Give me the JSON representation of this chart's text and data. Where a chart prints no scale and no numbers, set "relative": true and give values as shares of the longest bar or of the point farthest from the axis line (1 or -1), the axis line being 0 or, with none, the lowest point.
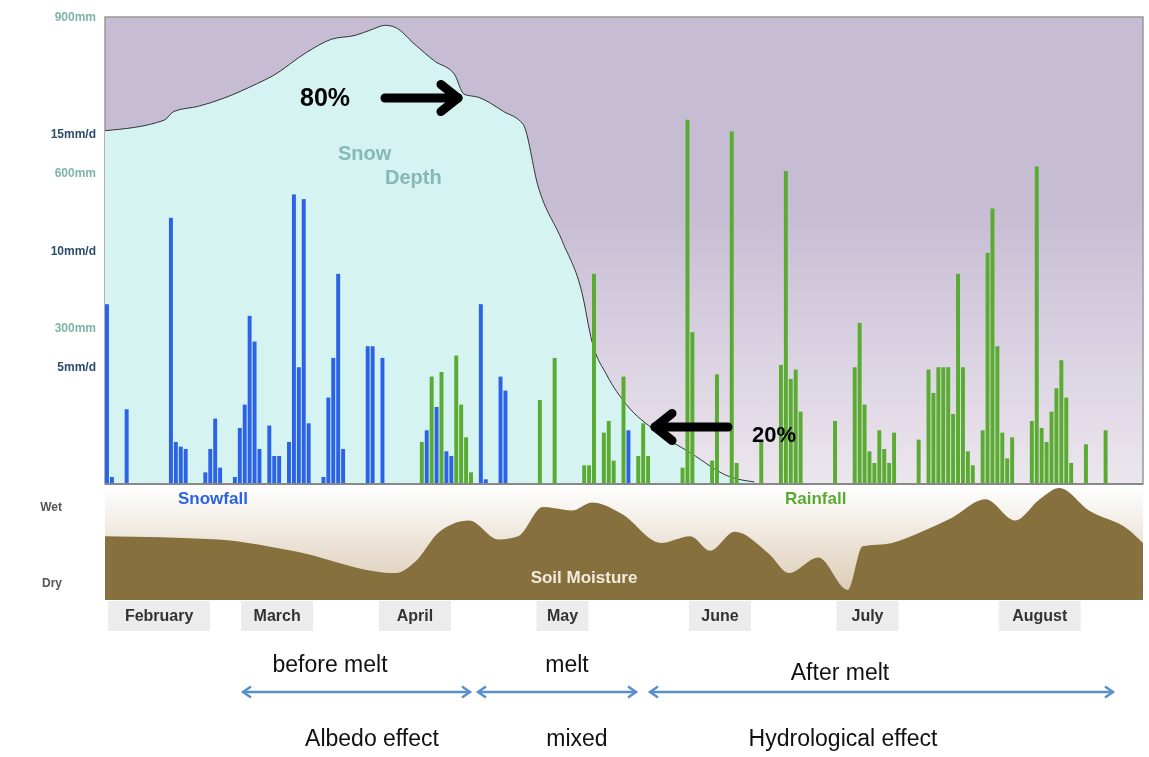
{
  "chart_data": [
    {
      "type": "bar",
      "xlim": [
        "--02-01",
        "--08-31"
      ],
      "ylim": [
        0,
        20
      ],
      "yticks": [
        {
          "value": 5,
          "label": "5mm/d"
        },
        {
          "value": 10,
          "label": "10mm/d"
        },
        {
          "value": 15,
          "label": "15mm/d"
        }
      ],
      "y2lim": [
        0,
        900
      ],
      "y2ticks": [
        {
          "value": 300,
          "label": "300mm"
        },
        {
          "value": 600,
          "label": "600mm"
        },
        {
          "value": 900,
          "label": "900mm"
        }
      ],
      "tick_labels": "y",
      "series": [
        {
          "name": "Snow Depth",
          "type": "area",
          "axis": "y2",
          "color": "#d4f3f1",
          "x": [
            "--02-01",
            "--02-13",
            "--02-15",
            "--02-20",
            "--02-25",
            "--03-04",
            "--03-07",
            "--03-14",
            "--03-19",
            "--03-24",
            "--03-27",
            "--03-30",
            "--04-01",
            "--04-05",
            "--04-09",
            "--04-13",
            "--04-15",
            "--04-18",
            "--04-23",
            "--04-27",
            "--04-30",
            "--05-05",
            "--05-09",
            "--05-11",
            "--05-14",
            "--05-18",
            "--05-24",
            "--05-31",
            "--06-08",
            "--06-13"
          ],
          "values": [
            681,
            701,
            718,
            728,
            743,
            772,
            786,
            832,
            857,
            865,
            875,
            884,
            880,
            847,
            815,
            790,
            751,
            745,
            718,
            693,
            575,
            467,
            367,
            274,
            210,
            153,
            102,
            60,
            14,
            4
          ]
        },
        {
          "name": "Snowfall",
          "color": "#2b62e6",
          "x": [
            "--02-01",
            "--02-02",
            "--02-05",
            "--02-14",
            "--02-15",
            "--02-16",
            "--02-17",
            "--02-21",
            "--02-22",
            "--02-23",
            "--02-24",
            "--02-27",
            "--02-28",
            "--03-01",
            "--03-02",
            "--03-03",
            "--03-04",
            "--03-06",
            "--03-07",
            "--03-08",
            "--03-10",
            "--03-11",
            "--03-12",
            "--03-13",
            "--03-14",
            "--03-17",
            "--03-18",
            "--03-19",
            "--03-20",
            "--03-21",
            "--03-26",
            "--03-27",
            "--03-29",
            "--04-07",
            "--04-09",
            "--04-11",
            "--04-12",
            "--04-18",
            "--04-19",
            "--04-22",
            "--04-23",
            "--05-18"
          ],
          "values": [
            7.7,
            0.3,
            3.2,
            11.4,
            1.8,
            1.6,
            1.5,
            0.5,
            1.5,
            2.8,
            0.7,
            0.3,
            2.4,
            3.4,
            7.2,
            6.1,
            1.5,
            2.5,
            1.2,
            1.2,
            1.8,
            12.4,
            5.0,
            12.2,
            2.6,
            0.3,
            3.7,
            5.4,
            9.0,
            1.5,
            5.9,
            5.9,
            5.4,
            2.3,
            3.3,
            1.4,
            1.2,
            7.7,
            0.2,
            4.6,
            4.0,
            2.3
          ]
        },
        {
          "name": "Rainfall",
          "color": "#5aab32",
          "x": [
            "--04-06",
            "--04-08",
            "--04-10",
            "--04-13",
            "--04-14",
            "--04-15",
            "--04-16",
            "--04-30",
            "--05-03",
            "--05-09",
            "--05-10",
            "--05-11",
            "--05-13",
            "--05-14",
            "--05-15",
            "--05-17",
            "--05-20",
            "--05-21",
            "--05-22",
            "--05-29",
            "--05-30",
            "--05-31",
            "--06-04",
            "--06-05",
            "--06-08",
            "--06-09",
            "--06-14",
            "--06-18",
            "--06-19",
            "--06-20",
            "--06-21",
            "--06-22",
            "--06-29",
            "--07-03",
            "--07-04",
            "--07-05",
            "--07-06",
            "--07-07",
            "--07-08",
            "--07-09",
            "--07-10",
            "--07-11",
            "--07-16",
            "--07-18",
            "--07-19",
            "--07-20",
            "--07-21",
            "--07-22",
            "--07-23",
            "--07-24",
            "--07-25",
            "--07-26",
            "--07-27",
            "--07-29",
            "--07-30",
            "--07-31",
            "--08-01",
            "--08-02",
            "--08-03",
            "--08-04",
            "--08-08",
            "--08-09",
            "--08-10",
            "--08-11",
            "--08-12",
            "--08-13",
            "--08-14",
            "--08-15",
            "--08-16",
            "--08-19",
            "--08-23"
          ],
          "values": [
            1.8,
            4.6,
            4.8,
            5.5,
            3.4,
            2.0,
            0.5,
            3.6,
            5.4,
            0.8,
            0.8,
            9.0,
            2.2,
            2.7,
            1.0,
            4.6,
            1.2,
            2.6,
            1.2,
            0.7,
            15.6,
            6.5,
            1.0,
            4.7,
            15.1,
            0.9,
            1.8,
            5.1,
            13.4,
            4.5,
            4.9,
            3.1,
            2.7,
            5.0,
            6.9,
            3.4,
            1.4,
            0.9,
            2.3,
            1.5,
            0.9,
            2.2,
            1.9,
            4.9,
            3.9,
            5.0,
            5.0,
            5.0,
            3.0,
            9.0,
            5.0,
            1.4,
            0.8,
            2.3,
            9.9,
            11.8,
            5.9,
            2.2,
            1.1,
            2.0,
            2.7,
            13.6,
            2.4,
            1.8,
            3.1,
            4.1,
            5.3,
            3.7,
            0.9,
            1.7,
            2.3
          ]
        }
      ],
      "annotations": [
        "80%",
        "20%"
      ]
    },
    {
      "type": "area",
      "relative": true,
      "xlim": [
        "--02-01",
        "--08-31"
      ],
      "xticks": [
        {
          "value": "--02-12",
          "label": "February"
        },
        {
          "value": "--03-08",
          "label": "March"
        },
        {
          "value": "--04-05",
          "label": "April"
        },
        {
          "value": "--05-05",
          "label": "May"
        },
        {
          "value": "--06-06",
          "label": "June"
        },
        {
          "value": "--07-06",
          "label": "July"
        },
        {
          "value": "--08-10",
          "label": "August"
        }
      ],
      "series": [
        {
          "name": "Soil Moisture",
          "color": "#85703e",
          "x": [
            "--02-01",
            "--02-24",
            "--03-11",
            "--04-01",
            "--04-05",
            "--04-10",
            "--04-16",
            "--04-22",
            "--04-26",
            "--05-01",
            "--05-07",
            "--05-11",
            "--05-17",
            "--05-25",
            "--05-31",
            "--06-04",
            "--06-09",
            "--06-16",
            "--06-20",
            "--06-26",
            "--07-02",
            "--07-05",
            "--07-11",
            "--07-17",
            "--07-23",
            "--07-30",
            "--08-05",
            "--08-10",
            "--08-14",
            "--08-20",
            "--08-28",
            "--08-31"
          ],
          "values": [
            0.57,
            0.54,
            0.44,
            0.24,
            0.34,
            0.61,
            0.71,
            0.54,
            0.57,
            0.83,
            0.8,
            0.87,
            0.77,
            0.51,
            0.57,
            0.44,
            0.61,
            0.41,
            0.24,
            0.38,
            0.09,
            0.48,
            0.51,
            0.61,
            0.73,
            0.9,
            0.71,
            0.9,
            1.0,
            0.8,
            0.63,
            0.51
          ]
        }
      ],
      "annotations": [
        "Wet",
        "Dry",
        "before melt",
        "melt",
        "After melt",
        "Albedo effect",
        "mixed",
        "Hydrological effect"
      ]
    }
  ]
}
